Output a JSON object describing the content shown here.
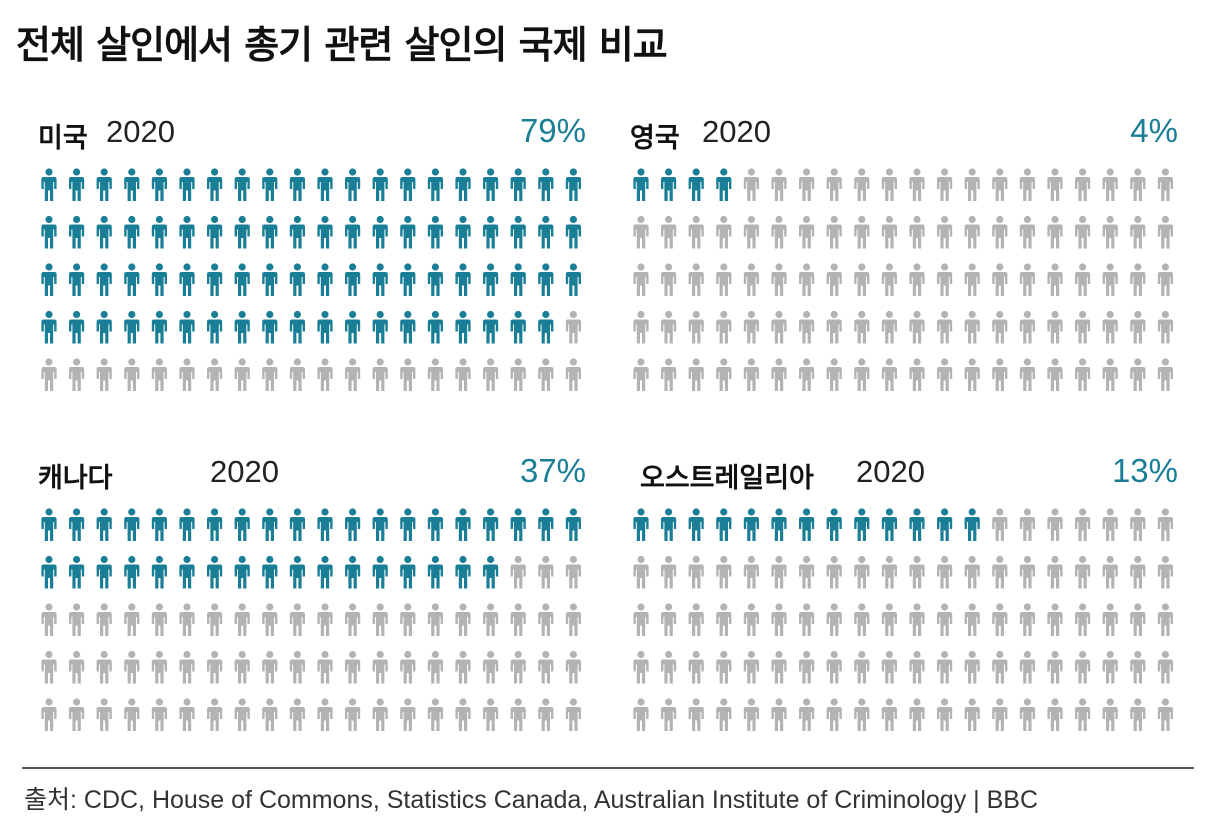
{
  "title": "전체 살인에서 총기 관련 살인의 국제 비교",
  "source": "출처: CDC, House of Commons, Statistics Canada, Australian Institute of Criminology | BBC",
  "colors": {
    "highlight": "#1a7f96",
    "rest": "#b3b3b3"
  },
  "icon": "person-icon",
  "chart_data": {
    "type": "bar",
    "title": "전체 살인에서 총기 관련 살인의 국제 비교",
    "encoding": "100 person icons per country, 20 per row; highlighted icons = share of homicides involving firearms",
    "panels": [
      {
        "country": "미국",
        "year": "2020",
        "label": "79%",
        "value": 79
      },
      {
        "country": "영국",
        "year": "2020",
        "label": "4%",
        "value": 4
      },
      {
        "country": "캐나다",
        "year": "2020",
        "label": "37%",
        "value": 37
      },
      {
        "country": "오스트레일리아",
        "year": "2020",
        "label": "13%",
        "value": 13
      }
    ],
    "total_icons": 100,
    "icons_per_row": 20
  }
}
